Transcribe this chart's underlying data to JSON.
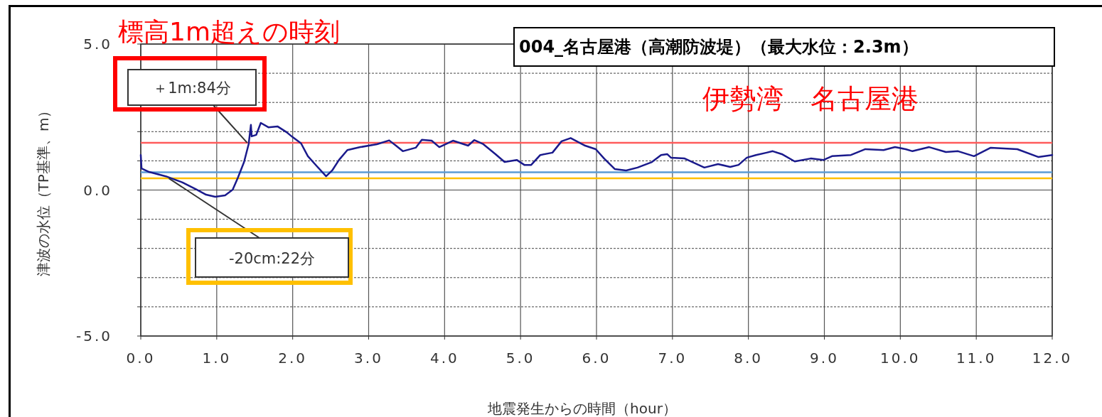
{
  "chart_data": {
    "type": "line",
    "title": "004_名古屋港（高潮防波堤）（最大水位：2.3m）",
    "xlabel": "地震発生からの時間（hour）",
    "ylabel": "津波の水位（TP基準、m）",
    "annotations": [
      "標高1m超えの時刻",
      "伊勢湾　名古屋港",
      {
        "text": "＋1m:84分",
        "x": 1.4,
        "y": 1.62
      },
      {
        "text": "-20cm:22分",
        "x": 0.37,
        "y": 0.4
      }
    ],
    "xlim": [
      0,
      12
    ],
    "ylim": [
      -5,
      5
    ],
    "xticks": [
      {
        "value": 0,
        "label": "0.0"
      },
      {
        "value": 1,
        "label": "1.0"
      },
      {
        "value": 2,
        "label": "2.0"
      },
      {
        "value": 3,
        "label": "3.0"
      },
      {
        "value": 4,
        "label": "4.0"
      },
      {
        "value": 5,
        "label": "5.0"
      },
      {
        "value": 6,
        "label": "6.0"
      },
      {
        "value": 7,
        "label": "7.0"
      },
      {
        "value": 8,
        "label": "8.0"
      },
      {
        "value": 9,
        "label": "9.0"
      },
      {
        "value": 10,
        "label": "10.0"
      },
      {
        "value": 11,
        "label": "11.0"
      },
      {
        "value": 12,
        "label": "12.0"
      }
    ],
    "yticks": [
      {
        "value": 5,
        "label": "5.0"
      },
      {
        "value": 4,
        "label": null
      },
      {
        "value": 3,
        "label": null
      },
      {
        "value": 2,
        "label": null
      },
      {
        "value": 1,
        "label": null
      },
      {
        "value": 0,
        "label": "0.0"
      },
      {
        "value": -1,
        "label": null
      },
      {
        "value": -2,
        "label": null
      },
      {
        "value": -3,
        "label": null
      },
      {
        "value": -4,
        "label": null
      },
      {
        "value": -5,
        "label": "-5.0"
      }
    ],
    "grid": true,
    "marker": "none",
    "line_style": "solid",
    "ref_lines": [
      {
        "axis": "y",
        "value": 1.62,
        "color": "#ff5b5b"
      },
      {
        "axis": "y",
        "value": 0.61,
        "color": "#5b9bd5"
      },
      {
        "axis": "y",
        "value": 0.4,
        "color": "#ffc000"
      }
    ],
    "series": [
      {
        "color": "#1a1a8c",
        "x": [
          0,
          0.01,
          0.11,
          0.33,
          0.55,
          0.74,
          0.86,
          0.98,
          1.11,
          1.21,
          1.28,
          1.36,
          1.42,
          1.45,
          1.46,
          1.52,
          1.58,
          1.68,
          1.8,
          1.92,
          2.0,
          2.11,
          2.2,
          2.31,
          2.44,
          2.52,
          2.61,
          2.72,
          2.89,
          3.11,
          3.27,
          3.36,
          3.45,
          3.62,
          3.7,
          3.83,
          3.93,
          4.11,
          4.31,
          4.39,
          4.51,
          4.67,
          4.79,
          4.95,
          5.05,
          5.14,
          5.26,
          5.42,
          5.54,
          5.66,
          5.85,
          5.99,
          6.1,
          6.24,
          6.39,
          6.54,
          6.73,
          6.85,
          6.93,
          6.98,
          7.16,
          7.42,
          7.6,
          7.76,
          7.87,
          7.98,
          8.1,
          8.24,
          8.32,
          8.44,
          8.61,
          8.82,
          8.99,
          9.1,
          9.35,
          9.54,
          9.78,
          9.93,
          10.07,
          10.16,
          10.38,
          10.6,
          10.76,
          10.97,
          11.19,
          11.54,
          11.82,
          12.0
        ],
        "values": [
          1.2,
          0.74,
          0.62,
          0.47,
          0.26,
          0.01,
          -0.16,
          -0.23,
          -0.18,
          0.01,
          0.43,
          0.96,
          1.57,
          2.23,
          1.84,
          1.89,
          2.3,
          2.15,
          2.18,
          1.98,
          1.81,
          1.6,
          1.16,
          0.84,
          0.47,
          0.67,
          1.03,
          1.37,
          1.47,
          1.57,
          1.7,
          1.52,
          1.33,
          1.45,
          1.72,
          1.69,
          1.47,
          1.69,
          1.52,
          1.71,
          1.57,
          1.23,
          0.96,
          1.03,
          0.86,
          0.86,
          1.2,
          1.28,
          1.67,
          1.78,
          1.52,
          1.4,
          1.08,
          0.72,
          0.67,
          0.77,
          0.96,
          1.2,
          1.23,
          1.11,
          1.08,
          0.77,
          0.89,
          0.79,
          0.86,
          1.11,
          1.2,
          1.28,
          1.33,
          1.23,
          0.98,
          1.08,
          1.03,
          1.16,
          1.2,
          1.4,
          1.37,
          1.47,
          1.4,
          1.33,
          1.47,
          1.3,
          1.33,
          1.16,
          1.45,
          1.4,
          1.13,
          1.2
        ]
      }
    ]
  }
}
